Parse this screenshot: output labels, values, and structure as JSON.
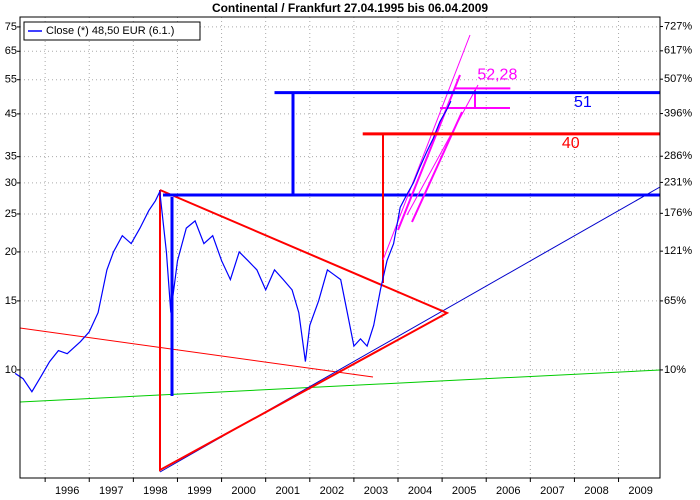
{
  "chart_data": {
    "type": "line",
    "title": "Continental / Frankfurt 27.04.1995 bis 06.04.2009",
    "log_scale": true,
    "grid": true,
    "legend": "top-left",
    "xlim": [
      1995.43,
      2009.94
    ],
    "xticks": [
      1996,
      1997,
      1998,
      1999,
      2000,
      2001,
      2002,
      2003,
      2004,
      2005,
      2006,
      2007,
      2008,
      2009
    ],
    "ylim": [
      5.3,
      79.5
    ],
    "yticks": [
      75,
      65,
      55,
      45,
      35,
      30,
      25,
      20,
      15,
      10
    ],
    "y2lim": [
      -41.7,
      774.6
    ],
    "y2ticks": [
      {
        "value": 727,
        "label": "727%"
      },
      {
        "value": 617,
        "label": "617%"
      },
      {
        "value": 507,
        "label": "507%"
      },
      {
        "value": 396,
        "label": "396%"
      },
      {
        "value": 286,
        "label": "286%"
      },
      {
        "value": 231,
        "label": "231%"
      },
      {
        "value": 176,
        "label": "176%"
      },
      {
        "value": 121,
        "label": "121%"
      },
      {
        "value": 65,
        "label": "65%"
      },
      {
        "value": 10,
        "label": "10%"
      }
    ],
    "x": [
      1995.32,
      1995.5,
      1995.7,
      1995.9,
      1996.1,
      1996.3,
      1996.5,
      1996.8,
      1997.0,
      1997.2,
      1997.4,
      1997.55,
      1997.75,
      1997.95,
      1998.15,
      1998.35,
      1998.5,
      1998.6,
      1998.75,
      1998.85,
      1999.0,
      1999.2,
      1999.4,
      1999.6,
      1999.8,
      2000.0,
      2000.2,
      2000.4,
      2000.6,
      2000.8,
      2001.0,
      2001.2,
      2001.4,
      2001.6,
      2001.75,
      2001.9,
      2002.0,
      2002.2,
      2002.4,
      2002.55,
      2002.7,
      2002.85,
      2003.0,
      2003.15,
      2003.3,
      2003.45,
      2003.6,
      2003.75,
      2003.9,
      2004.05,
      2004.2,
      2004.35,
      2004.5,
      2004.65,
      2004.8,
      2004.95,
      2005.1,
      2005.2
    ],
    "series": [
      {
        "name": "Close (*) 48,50 EUR (6.1.)",
        "color": "#0000ff",
        "values": [
          9.8,
          9.5,
          8.8,
          9.6,
          10.5,
          11.2,
          11.0,
          11.8,
          12.5,
          14,
          18,
          20,
          22,
          21,
          23,
          25.5,
          27,
          28.5,
          20,
          14,
          19,
          23,
          24,
          21,
          22,
          19,
          17,
          20,
          19,
          18,
          16,
          18,
          17,
          16,
          14,
          10.5,
          13,
          15,
          18,
          17.5,
          17,
          14,
          11.5,
          12,
          11.5,
          13,
          16,
          19,
          21,
          26,
          28,
          30,
          33,
          36,
          39,
          43,
          46,
          48.5
        ]
      }
    ],
    "hlines": [
      {
        "value": 51,
        "color": "#0000ff",
        "from": 2001.2
      },
      {
        "value": 40,
        "color": "#ff0000",
        "from": 2003.2
      },
      {
        "value": 52.28,
        "label": "52,28",
        "color": "#ff00ff",
        "from": 2005.3
      }
    ]
  }
}
